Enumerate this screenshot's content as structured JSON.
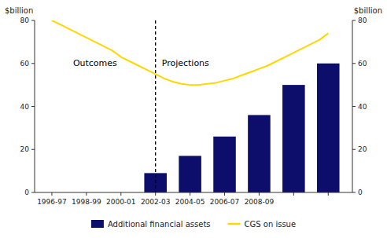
{
  "chart_data": {
    "type": "bar",
    "y_label": "$billion",
    "y2_label": "$billion",
    "xlim": [
      -0.5,
      8.7
    ],
    "xticks": [
      {
        "value": 0,
        "label": "1996-97"
      },
      {
        "value": 1,
        "label": "1998-99"
      },
      {
        "value": 2,
        "label": "2000-01"
      },
      {
        "value": 3,
        "label": "2002-03"
      },
      {
        "value": 4,
        "label": "2004-05"
      },
      {
        "value": 5,
        "label": "2006-07"
      },
      {
        "value": 6,
        "label": "2008-09"
      },
      {
        "value": 7,
        "label": null
      },
      {
        "value": 8,
        "label": null
      }
    ],
    "ylim": [
      0,
      80
    ],
    "yticks": [
      0,
      20,
      40,
      60,
      80
    ],
    "y2lim": [
      0,
      80
    ],
    "y2ticks": [
      0,
      20,
      40,
      60,
      80
    ],
    "series": [
      {
        "name": "Additional financial assets",
        "type": "bar",
        "color": "#0D0D6B",
        "x": [
          3,
          4,
          5,
          6,
          7,
          8
        ],
        "values": [
          9,
          17,
          26,
          36,
          50,
          60
        ]
      },
      {
        "name": "CGS on issue",
        "type": "line",
        "color": "#FFD700",
        "x": [
          0,
          0.25,
          0.5,
          0.75,
          1,
          1.25,
          1.5,
          1.75,
          2,
          2.25,
          2.5,
          2.75,
          3,
          3.25,
          3.5,
          3.75,
          4,
          4.25,
          4.5,
          4.75,
          5,
          5.25,
          5.5,
          5.75,
          6,
          6.25,
          6.5,
          6.75,
          7,
          7.25,
          7.5,
          7.75,
          8
        ],
        "values": [
          80,
          78,
          76,
          74,
          72,
          70,
          68,
          66,
          63,
          61,
          59,
          57,
          55,
          53,
          51.5,
          50.5,
          50,
          50,
          50.5,
          51,
          52,
          53,
          54.5,
          56,
          57.5,
          59,
          61,
          63,
          65,
          67,
          69,
          71,
          74
        ]
      }
    ],
    "reference_x": 3,
    "annotations": [
      {
        "text": "Outcomes"
      },
      {
        "text": "Projections"
      }
    ],
    "legend": "bottom"
  }
}
